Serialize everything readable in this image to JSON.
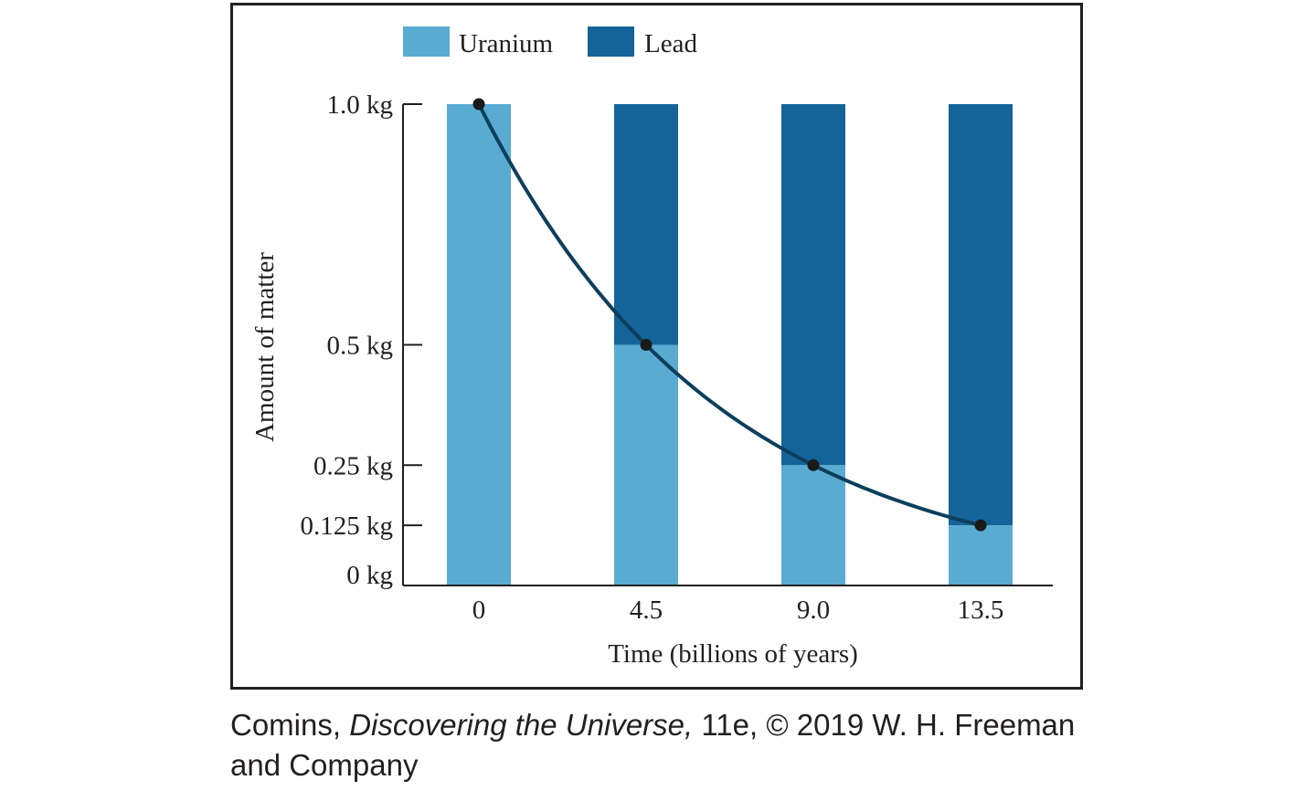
{
  "chart_data": {
    "type": "bar",
    "stacked": true,
    "categories": [
      "0",
      "4.5",
      "9.0",
      "13.5"
    ],
    "x_values": [
      0,
      4.5,
      9.0,
      13.5
    ],
    "series": [
      {
        "name": "Uranium",
        "color": "#5aabd2",
        "values": [
          1.0,
          0.5,
          0.25,
          0.125
        ]
      },
      {
        "name": "Lead",
        "color": "#156499",
        "values": [
          0.0,
          0.5,
          0.75,
          0.875
        ]
      }
    ],
    "decay_curve": {
      "color": "#0c3f5c",
      "points": [
        [
          0,
          1.0
        ],
        [
          4.5,
          0.5
        ],
        [
          9.0,
          0.25
        ],
        [
          13.5,
          0.125
        ]
      ]
    },
    "xlabel": "Time (billions of years)",
    "ylabel": "Amount of matter",
    "yticks": [
      {
        "value": 0,
        "label": "0 kg"
      },
      {
        "value": 0.125,
        "label": "0.125 kg"
      },
      {
        "value": 0.25,
        "label": "0.25 kg"
      },
      {
        "value": 0.5,
        "label": "0.5 kg"
      },
      {
        "value": 1.0,
        "label": "1.0 kg"
      }
    ],
    "ylim": [
      0,
      1.0
    ],
    "legend_position": "top-center",
    "grid": false
  },
  "credit": {
    "line1_prefix": "Comins, ",
    "line1_title": "Discovering the Universe,",
    "line1_suffix": " 11e, © 2019 W. H. Freeman",
    "line2": "and Company"
  }
}
